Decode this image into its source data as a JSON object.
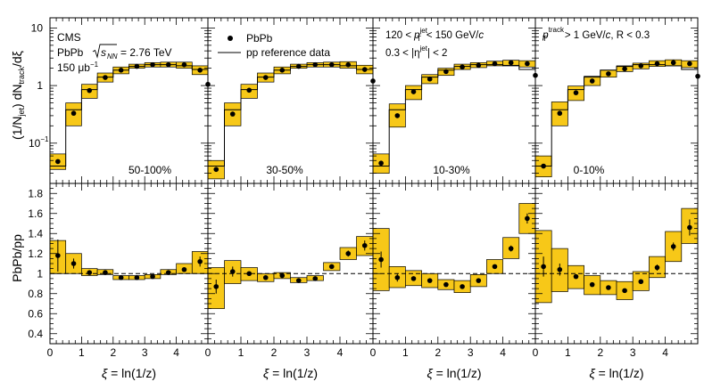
{
  "figure": {
    "experiment": "CMS",
    "system": "PbPb",
    "sqrt_label": "s",
    "sqrt_sub": "NN",
    "energy": "= 2.76 TeV",
    "lumi": "150 μb",
    "lumi_exp": "−1",
    "xaxis_label_xi": "ξ",
    "xaxis_label_rest": "= ln(1/z)",
    "y_top_label": "(1/N_jet) dN_track/dξ",
    "y_top_parts": [
      "(1/N",
      "jet",
      ") dN",
      "track",
      "/dξ"
    ],
    "y_bottom_label": "PbPb/pp",
    "legend": {
      "pbpb": "PbPb",
      "pp": "pp reference data"
    },
    "cuts": {
      "jetpt_a": "120 <",
      "jetpt_p": "p",
      "jetpt_sub": "T",
      "jetpt_sup": "jet",
      "jetpt_b": "< 150 GeV/",
      "jetpt_c": "c",
      "eta_a": "0.3 < |η",
      "eta_sup": "jet",
      "eta_b": "| < 2",
      "track_p": "p",
      "track_sub": "T",
      "track_sup": "track",
      "track_a": "> 1 GeV/",
      "track_c": "c",
      "track_b": ", R < 0.3"
    },
    "centrality": [
      "50-100%",
      "30-50%",
      "10-30%",
      "0-10%"
    ]
  },
  "chart_data": {
    "type": "scatter",
    "description": "Jet fragmentation functions in PbPb vs pp reference, four centrality bins, with PbPb/pp ratios",
    "x_bins": [
      0,
      0.5,
      1,
      1.5,
      2,
      2.5,
      3,
      3.5,
      4,
      4.5,
      5
    ],
    "x_ticks": [
      0,
      1,
      2,
      3,
      4
    ],
    "top": {
      "yscale": "log",
      "ylim": [
        0.02,
        15
      ],
      "yticks": [
        {
          "v": 0.1,
          "label": "10",
          "exp": "−1"
        },
        {
          "v": 1,
          "label": "1"
        },
        {
          "v": 10,
          "label": "10"
        }
      ],
      "pp": [
        0.04,
        0.38,
        0.85,
        1.4,
        1.85,
        2.15,
        2.3,
        2.3,
        2.2,
        1.9
      ],
      "panels": [
        {
          "centrality": "50-100%",
          "pbpb": [
            0.048,
            0.33,
            0.82,
            1.38,
            1.85,
            2.15,
            2.3,
            2.3,
            2.3,
            1.85,
            1.05
          ],
          "box_low": [
            0.035,
            0.2,
            0.6,
            1.15,
            1.6,
            2.0,
            2.1,
            2.1,
            2.0,
            1.55,
            0.85
          ],
          "box_high": [
            0.065,
            0.5,
            1.05,
            1.65,
            2.1,
            2.35,
            2.5,
            2.55,
            2.55,
            2.2,
            1.25
          ]
        },
        {
          "centrality": "30-50%",
          "pbpb": [
            0.035,
            0.32,
            0.83,
            1.38,
            1.85,
            2.15,
            2.3,
            2.3,
            2.3,
            1.9,
            1.2
          ],
          "box_low": [
            0.024,
            0.2,
            0.6,
            1.15,
            1.6,
            2.0,
            2.1,
            2.1,
            2.0,
            1.6,
            0.95
          ],
          "box_high": [
            0.05,
            0.5,
            1.05,
            1.65,
            2.1,
            2.35,
            2.5,
            2.55,
            2.6,
            2.25,
            1.45
          ]
        },
        {
          "centrality": "10-30%",
          "pbpb": [
            0.045,
            0.3,
            0.78,
            1.3,
            1.75,
            2.1,
            2.25,
            2.4,
            2.5,
            2.4,
            1.5
          ],
          "box_low": [
            0.03,
            0.19,
            0.57,
            1.08,
            1.5,
            1.9,
            2.05,
            2.2,
            2.25,
            2.1,
            1.25
          ],
          "box_high": [
            0.065,
            0.48,
            1.0,
            1.55,
            2.0,
            2.35,
            2.5,
            2.65,
            2.75,
            2.7,
            1.75
          ]
        },
        {
          "centrality": "0-10%",
          "pbpb": [
            0.04,
            0.33,
            0.75,
            1.2,
            1.6,
            1.95,
            2.2,
            2.4,
            2.5,
            2.4,
            1.45
          ],
          "box_low": [
            0.026,
            0.2,
            0.55,
            1.0,
            1.4,
            1.75,
            1.95,
            2.15,
            2.2,
            2.05,
            1.15
          ],
          "box_high": [
            0.06,
            0.52,
            0.98,
            1.45,
            1.85,
            2.2,
            2.45,
            2.7,
            2.8,
            2.7,
            1.8
          ]
        }
      ]
    },
    "bottom": {
      "yscale": "linear",
      "ylim": [
        0.3,
        1.9
      ],
      "yticks": [
        0.4,
        0.6,
        0.8,
        1,
        1.2,
        1.4,
        1.6,
        1.8
      ],
      "reference_line": 1,
      "panels": [
        {
          "centrality": "50-100%",
          "ratio": [
            1.18,
            1.1,
            1.01,
            1.01,
            0.96,
            0.96,
            0.97,
            1.01,
            1.04,
            1.12
          ],
          "stat_err": [
            0.16,
            0.05,
            0.02,
            0.02,
            0.01,
            0.01,
            0.01,
            0.01,
            0.02,
            0.05
          ],
          "box_low": [
            1.0,
            1.0,
            0.98,
            0.99,
            0.94,
            0.94,
            0.95,
            0.99,
            1.0,
            1.0
          ],
          "box_high": [
            1.33,
            1.2,
            1.05,
            1.04,
            0.98,
            0.98,
            0.99,
            1.04,
            1.1,
            1.22
          ]
        },
        {
          "centrality": "30-50%",
          "ratio": [
            0.87,
            1.02,
            1.0,
            0.96,
            0.98,
            0.93,
            0.95,
            1.07,
            1.2,
            1.28
          ],
          "stat_err": [
            0.07,
            0.05,
            0.02,
            0.01,
            0.01,
            0.01,
            0.01,
            0.02,
            0.03,
            0.05
          ],
          "box_low": [
            0.65,
            0.9,
            0.93,
            0.92,
            0.95,
            0.91,
            0.93,
            1.03,
            1.14,
            1.18
          ],
          "box_high": [
            1.06,
            1.13,
            1.06,
            1.0,
            1.01,
            0.96,
            0.98,
            1.11,
            1.26,
            1.37
          ]
        },
        {
          "centrality": "10-30%",
          "ratio": [
            1.14,
            0.96,
            0.95,
            0.93,
            0.89,
            0.87,
            0.93,
            1.07,
            1.25,
            1.55
          ],
          "stat_err": [
            0.08,
            0.04,
            0.02,
            0.01,
            0.01,
            0.01,
            0.02,
            0.02,
            0.03,
            0.05
          ],
          "box_low": [
            0.83,
            0.86,
            0.88,
            0.86,
            0.84,
            0.81,
            0.87,
            1.0,
            1.15,
            1.4
          ],
          "box_high": [
            1.45,
            1.07,
            1.03,
            1.0,
            0.94,
            0.93,
            0.99,
            1.14,
            1.36,
            1.7
          ]
        },
        {
          "centrality": "0-10%",
          "ratio": [
            1.07,
            1.04,
            0.97,
            0.89,
            0.86,
            0.83,
            0.92,
            1.06,
            1.27,
            1.46
          ],
          "stat_err": [
            0.1,
            0.06,
            0.02,
            0.02,
            0.01,
            0.02,
            0.02,
            0.03,
            0.04,
            0.08
          ],
          "box_low": [
            0.71,
            0.82,
            0.85,
            0.79,
            0.79,
            0.74,
            0.83,
            0.96,
            1.12,
            1.3
          ],
          "box_high": [
            1.43,
            1.25,
            1.08,
            0.98,
            0.93,
            0.92,
            1.02,
            1.17,
            1.42,
            1.65
          ]
        }
      ]
    }
  }
}
